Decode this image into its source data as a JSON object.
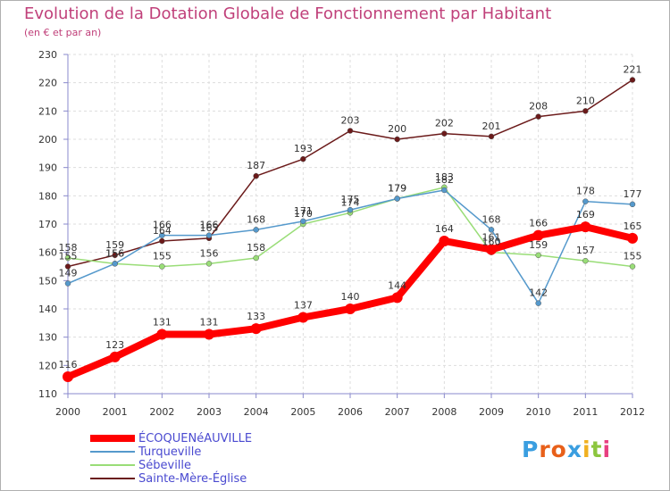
{
  "header": {
    "title": "Evolution de la Dotation Globale de Fonctionnement par Habitant",
    "subtitle": "(en € et par an)"
  },
  "brand": {
    "letters": [
      "P",
      "r",
      "o",
      "x",
      "i",
      "t",
      "i"
    ],
    "colors": [
      "#3a9ee0",
      "#e8601a",
      "#e8601a",
      "#3a9ee0",
      "#f0b020",
      "#8cc63f",
      "#e84080"
    ]
  },
  "chart_data": {
    "type": "line",
    "title": "Evolution de la Dotation Globale de Fonctionnement par Habitant",
    "ylabel": "(en € et par an)",
    "xlabel": "",
    "ylim": [
      110,
      230
    ],
    "yticks": [
      110,
      120,
      130,
      140,
      150,
      160,
      170,
      180,
      190,
      200,
      210,
      220,
      230
    ],
    "grid": true,
    "legend_position": "bottom-left",
    "categories": [
      "2000",
      "2001",
      "2002",
      "2003",
      "2004",
      "2005",
      "2006",
      "2007",
      "2008",
      "2009",
      "2010",
      "2011",
      "2012"
    ],
    "series": [
      {
        "name": "Sainte-Mère-Église",
        "color": "#6b1a1a",
        "emphasis": false,
        "values": [
          155,
          159,
          164,
          165,
          187,
          193,
          203,
          200,
          202,
          201,
          208,
          210,
          221
        ],
        "labels": [
          "155",
          "159",
          "164",
          "165",
          "187",
          "193",
          "203",
          "200",
          "202",
          "201",
          "208",
          "210",
          "221"
        ]
      },
      {
        "name": "Sébeville",
        "color": "#99dd77",
        "emphasis": false,
        "values": [
          158,
          156,
          155,
          156,
          158,
          170,
          174,
          179,
          183,
          160,
          159,
          157,
          155
        ],
        "labels": [
          "158",
          "156",
          "155",
          "156",
          "158",
          "170",
          "174",
          "179",
          "183",
          "160",
          "159",
          "157",
          "155"
        ]
      },
      {
        "name": "Turqueville",
        "color": "#5599cc",
        "emphasis": false,
        "values": [
          149,
          156,
          166,
          166,
          168,
          171,
          175,
          179,
          182,
          168,
          142,
          178,
          177
        ],
        "labels": [
          "149",
          "156",
          "166",
          "166",
          "168",
          "171",
          "175",
          "179",
          "182",
          "168",
          "142",
          "178",
          "177"
        ]
      },
      {
        "name": "ÉCOQUENéAUVILLE",
        "color": "#ff0000",
        "emphasis": true,
        "values": [
          116,
          123,
          131,
          131,
          133,
          137,
          140,
          144,
          164,
          161,
          166,
          169,
          165
        ],
        "labels": [
          "116",
          "123",
          "131",
          "131",
          "133",
          "137",
          "140",
          "144",
          "164",
          "161",
          "166",
          "169",
          "165"
        ]
      }
    ],
    "legend": [
      "ÉCOQUENéAUVILLE",
      "Turqueville",
      "Sébeville",
      "Sainte-Mère-Église"
    ]
  }
}
